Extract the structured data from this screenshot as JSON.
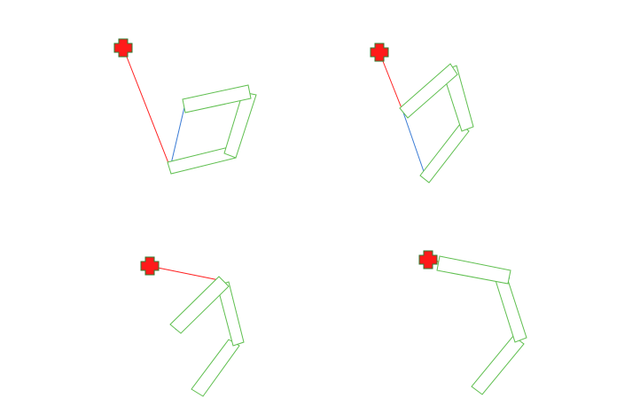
{
  "figure": {
    "panels": [
      {
        "id": "panel-1",
        "links": 3,
        "has_target": true
      },
      {
        "id": "panel-2",
        "links": 3,
        "has_target": true
      },
      {
        "id": "panel-3",
        "links": 3,
        "has_target": true
      },
      {
        "id": "panel-4",
        "links": 3,
        "has_target": true
      }
    ],
    "colors": {
      "link_outline": "#5fbf4f",
      "target_fill": "#ff1a1a",
      "target_outline": "#2e7d32",
      "target_line": "#ff2020",
      "axis_line": "#3a7bd5",
      "background": "#ffffff"
    },
    "icons": {
      "target": "cross-marker-icon"
    }
  }
}
